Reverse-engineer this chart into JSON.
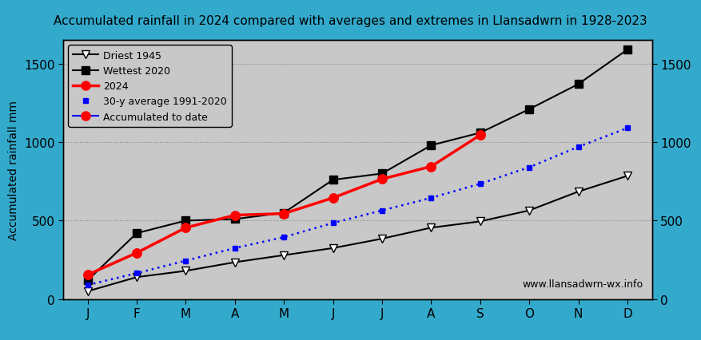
{
  "title": "Accumulated rainfall in 2024 compared with averages and extremes in Llansadwrn in 1928-2023",
  "ylabel": "Accumulated rainfall mm",
  "months": [
    "J",
    "F",
    "M",
    "A",
    "M",
    "J",
    "J",
    "A",
    "S",
    "O",
    "N",
    "D"
  ],
  "driest_1945": [
    50,
    140,
    180,
    235,
    280,
    325,
    385,
    455,
    495,
    565,
    685,
    785
  ],
  "wettest_2020": [
    120,
    420,
    500,
    510,
    550,
    760,
    800,
    980,
    1060,
    1210,
    1370,
    1590
  ],
  "year_2024": [
    155,
    295,
    455,
    535,
    545,
    645,
    765,
    845,
    1045
  ],
  "avg_30y": [
    90,
    165,
    245,
    325,
    395,
    485,
    565,
    645,
    735,
    840,
    970,
    1090
  ],
  "accumulated_to_date": [
    155,
    295,
    455,
    535,
    545,
    645,
    765,
    845,
    1045
  ],
  "plot_bg": "#c8c8c8",
  "fig_bg": "#33aacc",
  "watermark": "www.llansadwrn-wx.info",
  "ylim": [
    0,
    1650
  ],
  "yticks": [
    0,
    500,
    1000,
    1500
  ],
  "title_fontsize": 11,
  "tick_fontsize": 11,
  "label_fontsize": 10
}
